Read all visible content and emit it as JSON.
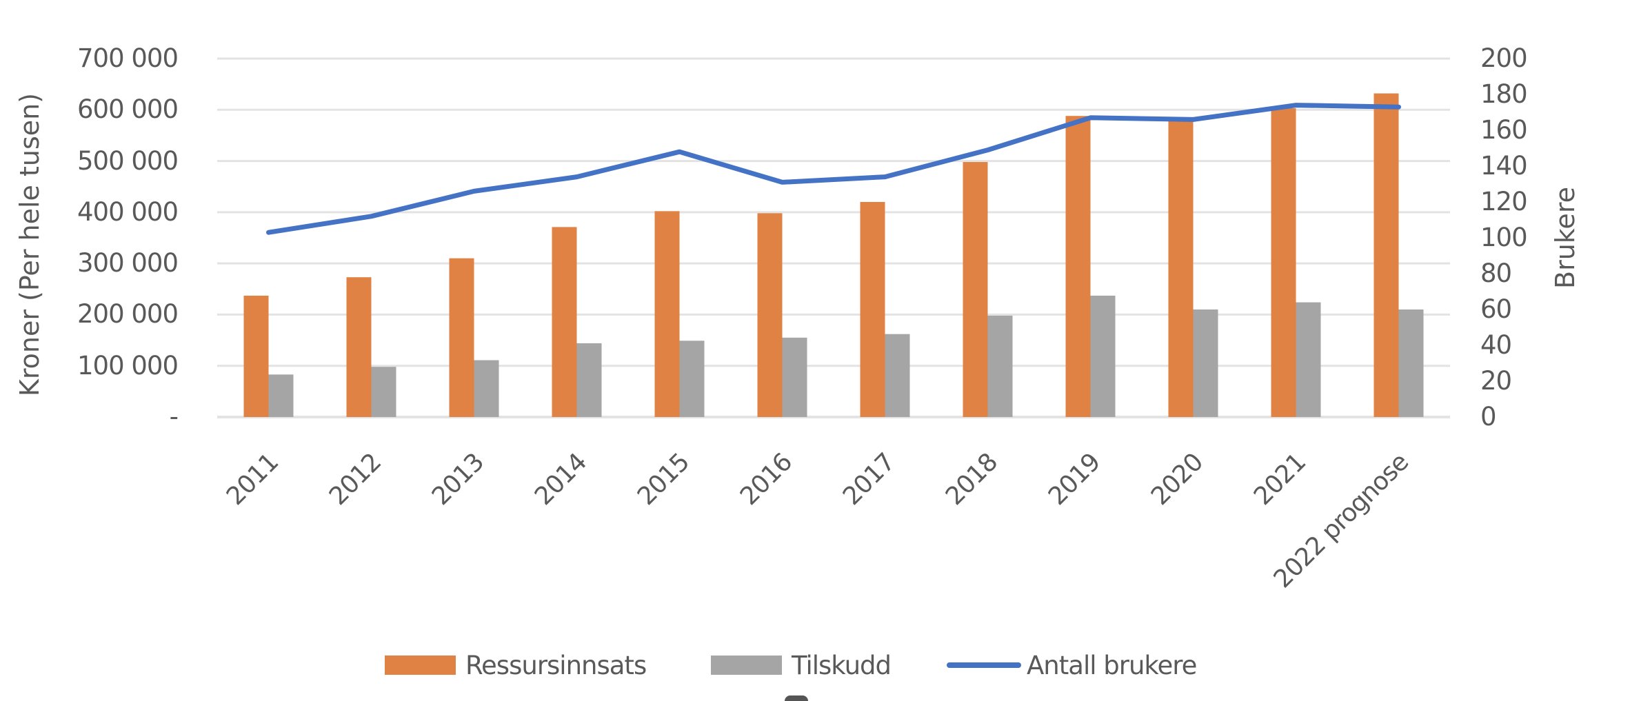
{
  "chart_data": {
    "type": "bar",
    "title": "",
    "xlabel": "",
    "ylabel": "Kroner (Per hele tusen)",
    "y2label": "Brukere",
    "ylim": [
      0,
      700000
    ],
    "y2lim": [
      0,
      200
    ],
    "grid": true,
    "legend_position": "bottom",
    "categories": [
      "2011",
      "2012",
      "2013",
      "2014",
      "2015",
      "2016",
      "2017",
      "2018",
      "2019",
      "2020",
      "2021",
      "2022 prognose"
    ],
    "series": [
      {
        "name": "Ressursinnsats",
        "type": "bar",
        "axis": "left",
        "color": "#DF8244",
        "values": [
          237000,
          273000,
          310000,
          371000,
          402000,
          398000,
          420000,
          498000,
          588000,
          580000,
          603000,
          632000
        ]
      },
      {
        "name": "Tilskudd",
        "type": "bar",
        "axis": "left",
        "color": "#A5A5A5",
        "values": [
          83000,
          98000,
          111000,
          144000,
          149000,
          155000,
          162000,
          198000,
          237000,
          210000,
          224000,
          210000
        ]
      },
      {
        "name": "Antall brukere",
        "type": "line",
        "axis": "right",
        "color": "#4472C4",
        "values": [
          103,
          112,
          126,
          134,
          148,
          131,
          134,
          149,
          167,
          166,
          174,
          173
        ]
      }
    ],
    "left_ticks": [
      "-",
      "100 000",
      "200 000",
      "300 000",
      "400 000",
      "500 000",
      "600 000",
      "700 000"
    ],
    "right_ticks": [
      "0",
      "20",
      "40",
      "60",
      "80",
      "100",
      "120",
      "140",
      "160",
      "180",
      "200"
    ]
  },
  "axes": {
    "left_title": "Kroner (Per hele tusen)",
    "right_title": "Brukere"
  },
  "legend": [
    {
      "label": "Ressursinnsats",
      "kind": "swatch",
      "color": "#DF8244"
    },
    {
      "label": "Tilskudd",
      "kind": "swatch",
      "color": "#A5A5A5"
    },
    {
      "label": "Antall brukere",
      "kind": "line",
      "color": "#4472C4"
    }
  ],
  "colors": {
    "gridline": "#E3E3E3",
    "axis_text": "#595959"
  }
}
